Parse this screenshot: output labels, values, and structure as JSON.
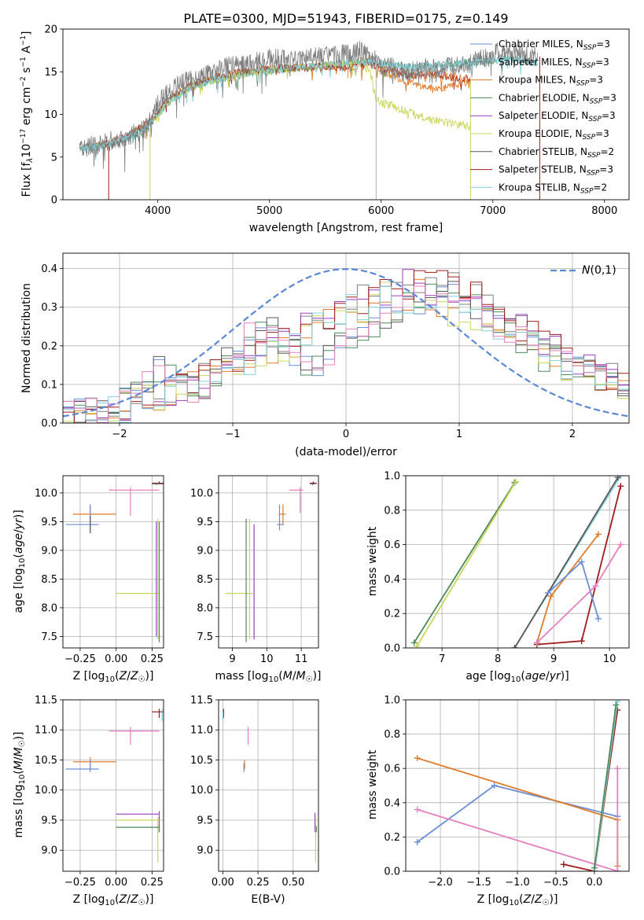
{
  "figure": {
    "title": "PLATE=0300, MJD=51943, FIBERID=0175, z=0.149"
  },
  "colors": {
    "Chabrier MILES": "#6a8fd8",
    "Salpeter MILES": "#7f7f7f",
    "Kroupa MILES": "#e07b2a",
    "Chabrier ELODIE": "#4f8a5a",
    "Salpeter ELODIE": "#9b3fbf",
    "Kroupa ELODIE": "#c9d65a",
    "Chabrier STELIB": "#595959",
    "Salpeter STELIB": "#a01b1b",
    "Kroupa STELIB": "#82d0dc",
    "pink": "#e57fbf",
    "normal": "#5b88d6"
  },
  "chart_data": [
    {
      "id": "spectrum",
      "type": "line",
      "title": "PLATE=0300, MJD=51943, FIBERID=0175, z=0.149",
      "xlabel": "wavelength [Angstrom, rest frame]",
      "ylabel": "Flux [f_λ 10^-17 erg cm^-2 s^-1 A^-1]",
      "xlim": [
        3150,
        8220
      ],
      "ylim": [
        0,
        20
      ],
      "xticks": [
        "4000",
        "5000",
        "6000",
        "7000",
        "8000"
      ],
      "yticks": [
        "0",
        "5",
        "10",
        "15",
        "20"
      ],
      "grid": false,
      "legend_position": "top-right",
      "legend": [
        {
          "base": "Chabrier MILES, N",
          "sub": "SSP",
          "tail": "=3"
        },
        {
          "base": "Salpeter MILES, N",
          "sub": "SSP",
          "tail": "=3"
        },
        {
          "base": "Kroupa MILES, N",
          "sub": "SSP",
          "tail": "=3"
        },
        {
          "base": "Chabrier ELODIE, N",
          "sub": "SSP",
          "tail": "=3"
        },
        {
          "base": "Salpeter ELODIE, N",
          "sub": "SSP",
          "tail": "=3"
        },
        {
          "base": "Kroupa ELODIE, N",
          "sub": "SSP",
          "tail": "=3"
        },
        {
          "base": "Chabrier STELIB, N",
          "sub": "SSP",
          "tail": "=2"
        },
        {
          "base": "Salpeter STELIB, N",
          "sub": "SSP",
          "tail": "=3"
        },
        {
          "base": "Kroupa STELIB, N",
          "sub": "SSP",
          "tail": "=2"
        }
      ],
      "series": [
        {
          "name": "data",
          "x": [
            3300,
            3400,
            3500,
            3600,
            3700,
            3800,
            3900,
            3950,
            4000,
            4100,
            4200,
            4300,
            4400,
            4500,
            4600,
            4700,
            4800,
            4900,
            5000,
            5100,
            5200,
            5300,
            5400,
            5500,
            5600,
            5700,
            5800,
            5900,
            6000,
            6100,
            6200,
            6300,
            6400,
            6500,
            6600,
            6700,
            6800,
            6900,
            7000,
            7100,
            7200,
            7300,
            7400
          ],
          "y": [
            6.0,
            6.3,
            6.5,
            7.0,
            7.3,
            7.8,
            8.5,
            9.5,
            11.5,
            12.5,
            13.8,
            14.0,
            14.5,
            14.8,
            15.5,
            15.8,
            16.0,
            16.2,
            16.5,
            16.5,
            16.3,
            16.6,
            16.7,
            16.9,
            16.8,
            17.2,
            17.5,
            16.8,
            15.8,
            15.5,
            15.0,
            15.2,
            15.3,
            15.4,
            15.5,
            15.8,
            16.0,
            16.5,
            17.0,
            17.5,
            17.2,
            17.0,
            16.8
          ]
        },
        {
          "name": "model-red",
          "x": [
            3300,
            3500,
            3700,
            3900,
            4100,
            4300,
            4500,
            4700,
            4900,
            5100,
            5300,
            5500,
            5700,
            5900,
            6000,
            6100,
            6200,
            6300,
            6400,
            6500,
            6600,
            6700,
            6800
          ],
          "y": [
            6.2,
            6.4,
            7.4,
            8.8,
            11.8,
            13.5,
            14.3,
            14.8,
            15.2,
            15.4,
            15.5,
            15.6,
            15.5,
            16.0,
            15.4,
            15.2,
            14.7,
            14.5,
            14.6,
            14.7,
            14.5,
            14.3,
            14.0
          ]
        },
        {
          "name": "model-orange",
          "x": [
            5700,
            5800,
            5900,
            6000,
            6100,
            6200,
            6300,
            6400,
            6500,
            6600,
            6700,
            6800
          ],
          "y": [
            15.8,
            16.2,
            16.5,
            15.0,
            14.5,
            14.0,
            13.5,
            13.2,
            13.0,
            13.2,
            13.5,
            13.8
          ]
        },
        {
          "name": "model-teal",
          "x": [
            3300,
            3500,
            3700,
            3900,
            4100,
            4300,
            4500,
            4700,
            4900,
            5100,
            5300,
            5500,
            5700,
            5900,
            6100,
            6300,
            6500,
            6700,
            6900,
            7100,
            7300,
            7400
          ],
          "y": [
            6.0,
            6.3,
            7.2,
            8.5,
            11.5,
            13.2,
            14.0,
            14.5,
            15.0,
            15.3,
            15.5,
            15.8,
            16.0,
            16.2,
            15.8,
            15.5,
            15.8,
            16.0,
            16.2,
            16.5,
            16.3,
            16.0
          ]
        },
        {
          "name": "model-yellow",
          "x": [
            3900,
            4100,
            4300,
            4500,
            4700,
            4900,
            5100,
            5300,
            5500,
            5700,
            5800,
            5900,
            5950,
            6000,
            6100,
            6200,
            6300,
            6400,
            6500,
            6600,
            6700,
            6800
          ],
          "y": [
            8.6,
            11.6,
            13.3,
            14.0,
            14.6,
            15.0,
            15.3,
            15.5,
            15.7,
            16.0,
            16.2,
            15.0,
            12.0,
            11.5,
            11.0,
            10.5,
            10.0,
            9.6,
            9.2,
            9.0,
            8.8,
            8.5
          ]
        }
      ]
    },
    {
      "id": "residuals",
      "type": "line",
      "xlabel": "(data-model)/error",
      "ylabel": "Normed distribution",
      "xlim": [
        -2.5,
        2.5
      ],
      "ylim": [
        0,
        0.44
      ],
      "xticks": [
        "−2",
        "−1",
        "0",
        "1",
        "2"
      ],
      "yticks": [
        "0.0",
        "0.1",
        "0.2",
        "0.3",
        "0.4"
      ],
      "grid": true,
      "legend_position": "top-right",
      "normal_label": "N(0,1)",
      "bin_width": 0.1,
      "bins_start": -2.5,
      "series": [
        {
          "name": "h1",
          "values": [
            0.03,
            0.03,
            0.04,
            0.04,
            0.05,
            0.07,
            0.09,
            0.12,
            0.14,
            0.13,
            0.11,
            0.09,
            0.1,
            0.13,
            0.16,
            0.19,
            0.22,
            0.24,
            0.26,
            0.22,
            0.18,
            0.15,
            0.16,
            0.18,
            0.2,
            0.22,
            0.24,
            0.26,
            0.28,
            0.3,
            0.3,
            0.32,
            0.34,
            0.36,
            0.33,
            0.32,
            0.3,
            0.28,
            0.25,
            0.24,
            0.22,
            0.2,
            0.17,
            0.16,
            0.15,
            0.14,
            0.13,
            0.12,
            0.11,
            0.1
          ]
        },
        {
          "name": "h2",
          "values": [
            0.02,
            0.02,
            0.03,
            0.03,
            0.04,
            0.04,
            0.05,
            0.06,
            0.07,
            0.08,
            0.09,
            0.1,
            0.12,
            0.14,
            0.15,
            0.17,
            0.18,
            0.19,
            0.21,
            0.22,
            0.23,
            0.25,
            0.26,
            0.28,
            0.29,
            0.31,
            0.32,
            0.33,
            0.34,
            0.35,
            0.36,
            0.37,
            0.37,
            0.36,
            0.35,
            0.34,
            0.33,
            0.31,
            0.29,
            0.27,
            0.25,
            0.23,
            0.21,
            0.19,
            0.17,
            0.15,
            0.14,
            0.13,
            0.12,
            0.11
          ]
        },
        {
          "name": "h3",
          "values": [
            0.01,
            0.02,
            0.02,
            0.03,
            0.03,
            0.04,
            0.05,
            0.06,
            0.07,
            0.08,
            0.09,
            0.1,
            0.11,
            0.12,
            0.14,
            0.15,
            0.16,
            0.17,
            0.19,
            0.2,
            0.21,
            0.23,
            0.25,
            0.26,
            0.28,
            0.3,
            0.29,
            0.31,
            0.33,
            0.3,
            0.32,
            0.34,
            0.32,
            0.31,
            0.29,
            0.3,
            0.28,
            0.27,
            0.25,
            0.23,
            0.21,
            0.2,
            0.18,
            0.16,
            0.14,
            0.13,
            0.12,
            0.11,
            0.1,
            0.08
          ]
        }
      ]
    },
    {
      "id": "age-Z",
      "type": "scatter",
      "xlabel": "Z [log10(Z/Z☉)]",
      "ylabel": "age [log10(age/yr)]",
      "xlim": [
        -0.37,
        0.33
      ],
      "ylim": [
        7.3,
        10.3
      ],
      "xticks": [
        "−0.25",
        "0.00",
        "0.25"
      ],
      "yticks": [
        "7.5",
        "8.0",
        "8.5",
        "9.0",
        "9.5",
        "10.0"
      ],
      "grid": true
    },
    {
      "id": "age-mass",
      "type": "scatter",
      "xlabel": "mass [log10(M/M☉)]",
      "xlim": [
        8.6,
        11.5
      ],
      "ylim": [
        7.3,
        10.3
      ],
      "xticks": [
        "9",
        "10",
        "11"
      ],
      "yticks": [
        "7.5",
        "8.0",
        "8.5",
        "9.0",
        "9.5",
        "10.0"
      ],
      "grid": true
    },
    {
      "id": "mw-age",
      "type": "line",
      "xlabel": "age [log10(age/yr)]",
      "ylabel": "mass weight",
      "xlim": [
        6.35,
        10.35
      ],
      "ylim": [
        0,
        1
      ],
      "xticks": [
        "7",
        "8",
        "9",
        "10"
      ],
      "yticks": [
        "0.0",
        "0.2",
        "0.4",
        "0.6",
        "0.8",
        "1.0"
      ],
      "grid": true
    },
    {
      "id": "mass-Z",
      "type": "scatter",
      "xlabel": "Z [log10(Z/Z☉)]",
      "ylabel": "mass [log10(M/M☉)]",
      "xlim": [
        -0.37,
        0.33
      ],
      "ylim": [
        8.65,
        11.5
      ],
      "xticks": [
        "−0.25",
        "0.00",
        "0.25"
      ],
      "yticks": [
        "9.0",
        "9.5",
        "10.0",
        "10.5",
        "11.0",
        "11.5"
      ],
      "grid": true
    },
    {
      "id": "mass-ebv",
      "type": "scatter",
      "xlabel": "E(B-V)",
      "xlim": [
        -0.03,
        0.68
      ],
      "ylim": [
        8.65,
        11.5
      ],
      "xticks": [
        "0.00",
        "0.25",
        "0.50"
      ],
      "yticks": [
        "9.0",
        "9.5",
        "10.0",
        "10.5",
        "11.0",
        "11.5"
      ],
      "grid": true
    },
    {
      "id": "mw-Z",
      "type": "line",
      "xlabel": "Z [log10(Z/Z☉)]",
      "ylabel": "mass weight",
      "xlim": [
        -2.45,
        0.45
      ],
      "ylim": [
        0,
        1
      ],
      "xticks": [
        "−2.0",
        "−1.5",
        "−1.0",
        "−0.5",
        "0.0"
      ],
      "yticks": [
        "0.0",
        "0.2",
        "0.4",
        "0.6",
        "0.8",
        "1.0"
      ],
      "grid": true
    }
  ]
}
